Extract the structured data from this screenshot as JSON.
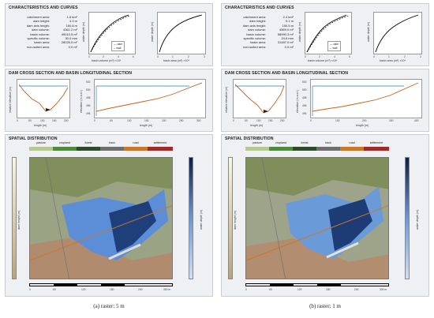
{
  "left": {
    "sec1_title": "CHARACTERISTICS AND CURVES",
    "sec2_title": "DAM CROSS SECTION AND BASIN LONGITUDINAL SECTION",
    "sec3_title": "SPATIAL DISTRIBUTION",
    "stats": [
      {
        "label": "catchment area:",
        "value": "1.6 km²"
      },
      {
        "label": "dam height:",
        "value": "4.3 m"
      },
      {
        "label": "dam axis length:",
        "value": "160.8 m"
      },
      {
        "label": "dam volume:",
        "value": "4361.2 m³"
      },
      {
        "label": "basin volume:",
        "value": "49010.5 m³"
      },
      {
        "label": "specific volume:",
        "value": "30.0 mm"
      },
      {
        "label": "basin area:",
        "value": "28025.0 m²"
      },
      {
        "label": "non-suited area:",
        "value": "0.0 m²"
      }
    ],
    "vol_xlabel": "basin volume (m³) ×10⁴",
    "area_xlabel": "basin area (m²) ×10⁴",
    "depth_ylabel": "water depth (m)",
    "vol_xticks": [
      "0",
      "2",
      "4",
      "6"
    ],
    "area_xticks": [
      "0",
      "1",
      "2",
      "3"
    ],
    "yticks_depth": [
      "0",
      "2",
      "4"
    ],
    "legend_dam": "dam",
    "legend_wall": "wall",
    "cross_xlabel": "length (m)",
    "cross_ylabel": "relative elevation (m)",
    "cross_xticks": [
      "0",
      "50",
      "100",
      "150",
      "200"
    ],
    "long_xlabel": "length (m)",
    "long_ylabel": "elevation (m a.s.l.)",
    "long_xticks": [
      "0",
      "50",
      "100",
      "150",
      "200",
      "250",
      "300"
    ],
    "long_yticks": [
      "494",
      "496",
      "498",
      "500",
      "502"
    ],
    "scale_labels": [
      "0",
      "60",
      "120",
      "180",
      "240",
      "300 m"
    ],
    "caption": "(a) raster: 5 m"
  },
  "right": {
    "sec1_title": "CHARACTERISTICS AND CURVES",
    "sec2_title": "DAM CROSS SECTION AND BASIN LONGITUDINAL SECTION",
    "sec3_title": "SPATIAL DISTRIBUTION",
    "stats": [
      {
        "label": "catchment area:",
        "value": "2.4 km²"
      },
      {
        "label": "dam height:",
        "value": "5.1 m"
      },
      {
        "label": "dam axis length:",
        "value": "150.5 m"
      },
      {
        "label": "dam volume:",
        "value": "4569.0 m³"
      },
      {
        "label": "basin volume:",
        "value": "58990.3 m³"
      },
      {
        "label": "specific volume:",
        "value": "24.6 mm"
      },
      {
        "label": "basin area:",
        "value": "31487.0 m²"
      },
      {
        "label": "non-suited area:",
        "value": "0.0 m²"
      }
    ],
    "vol_xlabel": "basin volume (m³) ×10⁴",
    "area_xlabel": "basin area (m²) ×10⁴",
    "depth_ylabel": "water depth (m)",
    "vol_xticks": [
      "0",
      "2",
      "4",
      "6"
    ],
    "area_xticks": [
      "0",
      "1",
      "2",
      "3"
    ],
    "yticks_depth": [
      "0",
      "2",
      "4"
    ],
    "legend_dam": "dam",
    "legend_wall": "wall",
    "cross_xlabel": "length (m)",
    "cross_ylabel": "relative elevation (m)",
    "cross_xticks": [
      "0",
      "50",
      "100",
      "150",
      "200"
    ],
    "long_xlabel": "length (m)",
    "long_ylabel": "elevation (m a.s.l.)",
    "long_xticks": [
      "0",
      "100",
      "200",
      "300",
      "400"
    ],
    "long_yticks": [
      "494",
      "496",
      "498",
      "500",
      "502"
    ],
    "scale_labels": [
      "0",
      "60",
      "120",
      "180",
      "240",
      "300 m"
    ],
    "caption": "(b) raster: 1 m"
  },
  "landuse": [
    {
      "label": "pasture",
      "color": "#b5c995"
    },
    {
      "label": "cropland",
      "color": "#4f8a3e"
    },
    {
      "label": "forest",
      "color": "#2f4a2a"
    },
    {
      "label": "track",
      "color": "#6e6e6e"
    },
    {
      "label": "road",
      "color": "#c9772b"
    },
    {
      "label": "settlement",
      "color": "#9e2a2a"
    }
  ],
  "dam_height_label": "dam height (m)",
  "dam_height_ticks": [
    "0",
    "1",
    "2",
    "3",
    "4",
    "5",
    "6"
  ],
  "water_depth_label": "water depth (m)",
  "water_depth_ticks": [
    "0",
    "1",
    "2",
    "3",
    "4",
    "5"
  ]
}
